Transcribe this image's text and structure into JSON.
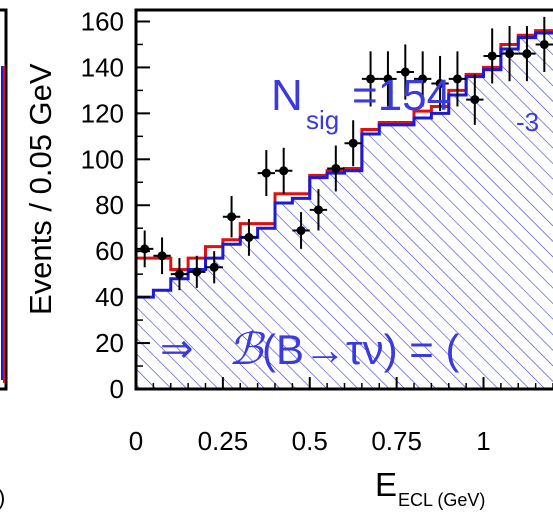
{
  "chart_data": {
    "type": "histogram",
    "ylabel": "Events / 0.05 GeV",
    "xlabel_main": "E",
    "xlabel_sub": "ECL (GeV)",
    "left_panel_xlabel_fragment": ")",
    "xlim": [
      0,
      1.2
    ],
    "ylim": [
      0,
      165
    ],
    "x_ticks": [
      "0",
      "0.25",
      "0.5",
      "0.75",
      "1"
    ],
    "x_tick_values": [
      0,
      0.25,
      0.5,
      0.75,
      1
    ],
    "y_ticks": [
      "0",
      "20",
      "40",
      "60",
      "80",
      "100",
      "120",
      "140",
      "160"
    ],
    "y_tick_values": [
      0,
      20,
      40,
      60,
      80,
      100,
      120,
      140,
      160
    ],
    "bin_edges": [
      0,
      0.05,
      0.1,
      0.15,
      0.2,
      0.25,
      0.3,
      0.35,
      0.4,
      0.45,
      0.5,
      0.55,
      0.6,
      0.65,
      0.7,
      0.75,
      0.8,
      0.85,
      0.9,
      0.95,
      1.0,
      1.05,
      1.1,
      1.15,
      1.2
    ],
    "series": [
      {
        "role": "total-fit",
        "color": "#e01010",
        "values": [
          57,
          57,
          52,
          57,
          62,
          65,
          72,
          72,
          85,
          85,
          93,
          95,
          96,
          113,
          116,
          116,
          121,
          123,
          130,
          137,
          140,
          150,
          154,
          156
        ]
      },
      {
        "role": "background",
        "color": "#1a1ad8",
        "hatch_color": "#3b3bd6",
        "values": [
          40,
          43,
          48,
          52,
          57,
          63,
          66,
          70,
          81,
          83,
          92,
          94,
          95,
          111,
          115,
          115,
          118,
          120,
          128,
          136,
          139,
          148,
          153,
          155
        ]
      },
      {
        "role": "data",
        "color": "#000000",
        "x": [
          0.025,
          0.075,
          0.125,
          0.175,
          0.225,
          0.275,
          0.325,
          0.375,
          0.425,
          0.475,
          0.525,
          0.575,
          0.625,
          0.675,
          0.725,
          0.775,
          0.825,
          0.875,
          0.925,
          0.975,
          1.025,
          1.075,
          1.125,
          1.175
        ],
        "y": [
          61,
          58,
          50,
          51,
          53,
          75,
          66,
          94,
          95,
          69,
          78,
          96,
          107,
          135,
          135,
          138,
          135,
          133,
          135,
          126,
          145,
          146,
          146,
          150
        ],
        "yerr": [
          8,
          8,
          7,
          7,
          7,
          9,
          8,
          10,
          10,
          8,
          9,
          10,
          10,
          12,
          12,
          12,
          12,
          12,
          12,
          11,
          12,
          12,
          12,
          12
        ],
        "xerr": 0.025
      }
    ],
    "annotations": {
      "nsig_main": "N",
      "nsig_sub": "sig",
      "nsig_value": "=154",
      "nsig_err": "-3",
      "arrow": "⇒",
      "bf_symbol": "ℬ",
      "bf_expr": "(B→τν) = ("
    }
  }
}
